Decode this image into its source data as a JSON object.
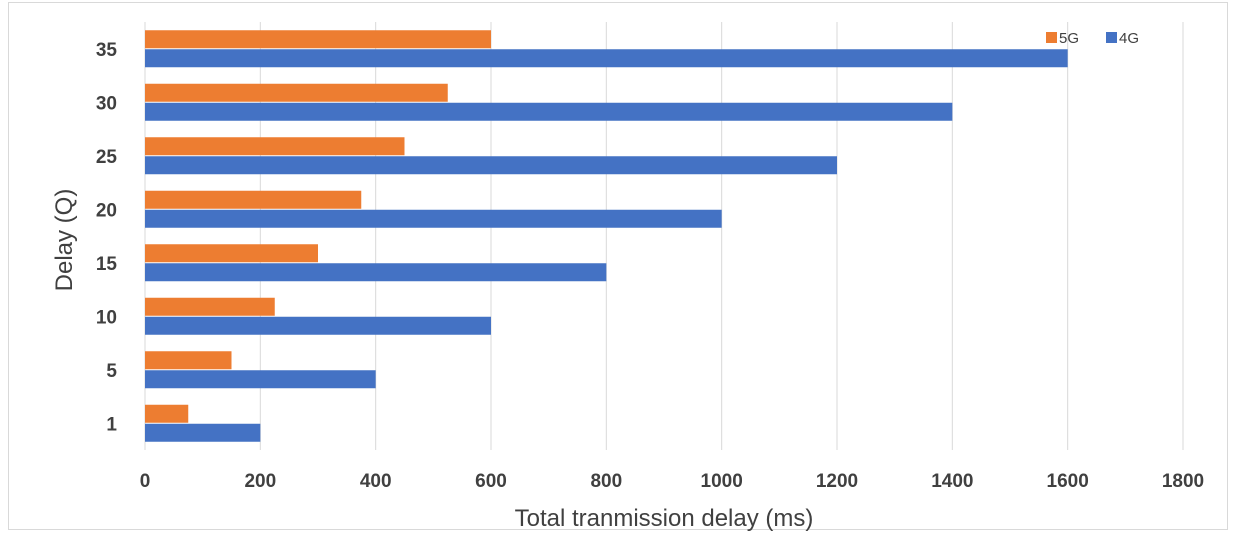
{
  "chart_data": {
    "type": "bar",
    "orientation": "horizontal",
    "categories": [
      "1",
      "5",
      "10",
      "15",
      "20",
      "25",
      "30",
      "35"
    ],
    "series": [
      {
        "name": "5G",
        "color": "#ED7D31",
        "values": [
          75,
          150,
          225,
          300,
          375,
          450,
          525,
          600
        ]
      },
      {
        "name": "4G",
        "color": "#4472C4",
        "values": [
          200,
          400,
          600,
          800,
          1000,
          1200,
          1400,
          1600
        ]
      }
    ],
    "xlabel": "Total tranmission delay (ms)",
    "ylabel": "Delay (Q)",
    "xlim": [
      0,
      1800
    ],
    "xticks": [
      "0",
      "200",
      "400",
      "600",
      "800",
      "1000",
      "1200",
      "1400",
      "1600",
      "1800"
    ],
    "grid": "vertical",
    "legend": "top-right"
  }
}
